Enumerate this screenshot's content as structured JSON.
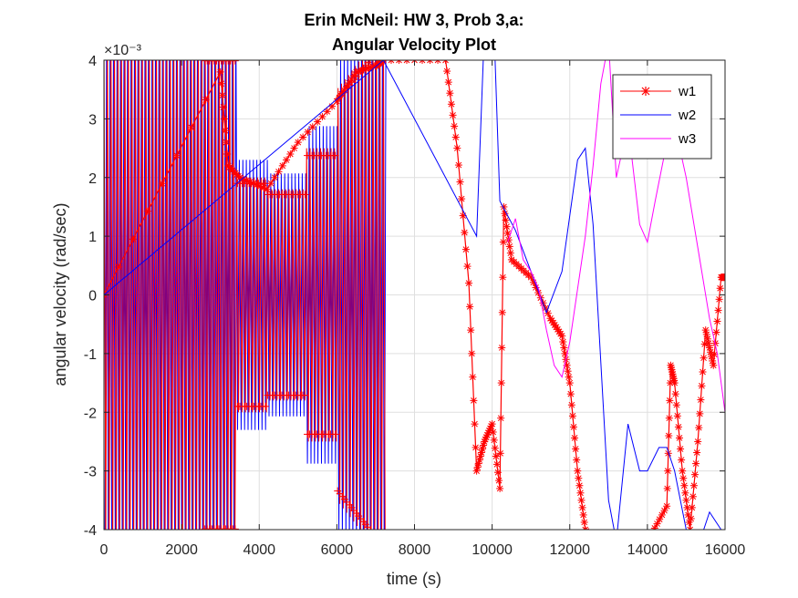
{
  "chart_data": {
    "type": "line",
    "title_lines": [
      "Erin McNeil: HW 3, Prob 3,a:",
      "Angular Velocity Plot"
    ],
    "xlabel": "time (s)",
    "ylabel": "angular velocity (rad/sec)",
    "y_exponent_label": "×10⁻³",
    "xlim": [
      0,
      16000
    ],
    "ylim": [
      -4,
      4
    ],
    "x_ticks": [
      0,
      2000,
      4000,
      6000,
      8000,
      10000,
      12000,
      14000,
      16000
    ],
    "x_tick_labels": [
      "0",
      "2000",
      "4000",
      "6000",
      "8000",
      "10000",
      "12000",
      "14000",
      "16000"
    ],
    "y_ticks": [
      -4,
      -3,
      -2,
      -1,
      0,
      1,
      2,
      3,
      4
    ],
    "y_tick_labels": [
      "-4",
      "-3",
      "-2",
      "-1",
      "0",
      "1",
      "2",
      "3",
      "4"
    ],
    "grid": true,
    "legend_position": "top-right",
    "series": [
      {
        "name": "w1",
        "color": "#ff0000",
        "marker": "asterisk",
        "x": [
          0,
          3000,
          3200,
          3500,
          4200,
          5000,
          6000,
          6500,
          7000,
          7200,
          8800,
          9100,
          9400,
          9600,
          9800,
          10000,
          10200,
          10300,
          10500,
          11000,
          11500,
          11800,
          12000,
          12200,
          12400,
          12600,
          13000,
          14000,
          14500,
          14600,
          14700,
          14900,
          15100,
          15300,
          15500,
          15700,
          15900,
          16000
        ],
        "y": [
          0,
          3.8,
          2.2,
          2.0,
          1.8,
          2.6,
          3.3,
          3.8,
          3.9,
          4.0,
          4.0,
          2.5,
          0.2,
          -3.0,
          -2.5,
          -2.2,
          -3.3,
          1.5,
          0.6,
          0.3,
          -0.4,
          -0.7,
          -1.5,
          -3.0,
          -4.0,
          -4.2,
          -4.3,
          -4.2,
          -3.6,
          -1.2,
          -1.5,
          -3.0,
          -4.0,
          -2.5,
          -0.6,
          -1.2,
          0.3,
          0.3
        ]
      },
      {
        "name": "w2",
        "color": "#0000ff",
        "marker": "none",
        "x": [
          0,
          7200,
          9600,
          9800,
          10000,
          10200,
          10600,
          11000,
          11400,
          11800,
          12200,
          12400,
          12600,
          13000,
          13200,
          13500,
          13800,
          14000,
          14300,
          14500,
          14700,
          15000,
          15300,
          15600,
          15900
        ],
        "y": [
          0,
          4.0,
          1.0,
          4.5,
          5.5,
          1.6,
          1.1,
          0.4,
          -0.3,
          0.4,
          2.3,
          2.5,
          1.2,
          -3.5,
          -4.2,
          -2.2,
          -3.0,
          -3.0,
          -2.6,
          -2.6,
          -3.0,
          -4.0,
          -4.3,
          -3.7,
          -4.0
        ]
      },
      {
        "name": "w3",
        "color": "#ff00ff",
        "marker": "none",
        "x": [
          10400,
          10600,
          10800,
          11000,
          11200,
          11400,
          11600,
          11800,
          12000,
          12200,
          12400,
          12600,
          12800,
          13000,
          13200,
          13500,
          13800,
          14000,
          14200,
          14500,
          14700,
          15000,
          15300,
          15600,
          15800,
          16000
        ],
        "y": [
          0.9,
          1.3,
          0.6,
          0.4,
          0.1,
          -0.6,
          -1.2,
          -1.4,
          -0.8,
          0.1,
          1.0,
          2.2,
          3.6,
          4.3,
          2.0,
          2.9,
          1.2,
          0.9,
          1.6,
          2.6,
          2.9,
          2.0,
          0.8,
          -0.4,
          -1.0,
          -2.0
        ]
      }
    ]
  }
}
